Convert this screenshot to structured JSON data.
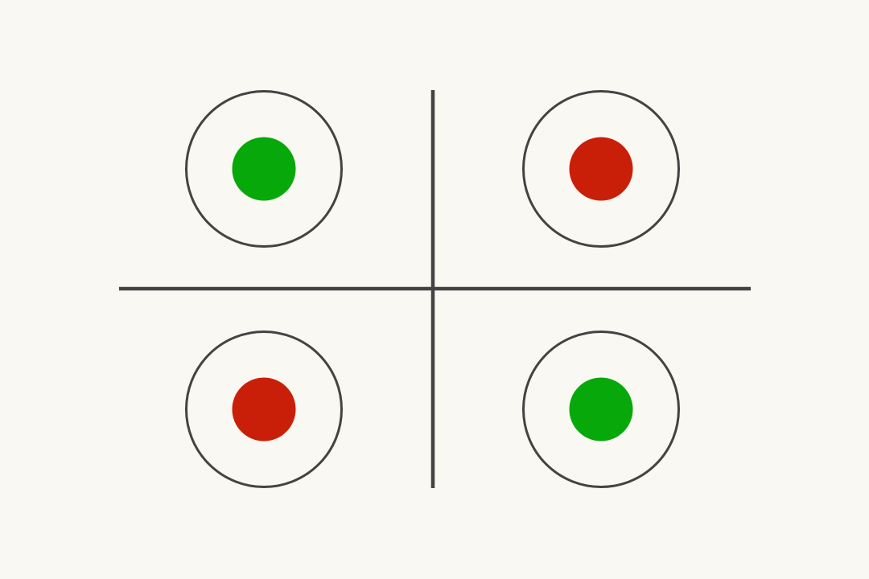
{
  "colors": {
    "background": "#faf8f2",
    "line": "#434343",
    "green": "#06a80a",
    "red": "#c91f08"
  },
  "quadrants": [
    {
      "position": "top-left",
      "dot_color": "green"
    },
    {
      "position": "top-right",
      "dot_color": "red"
    },
    {
      "position": "bottom-left",
      "dot_color": "red"
    },
    {
      "position": "bottom-right",
      "dot_color": "green"
    }
  ]
}
